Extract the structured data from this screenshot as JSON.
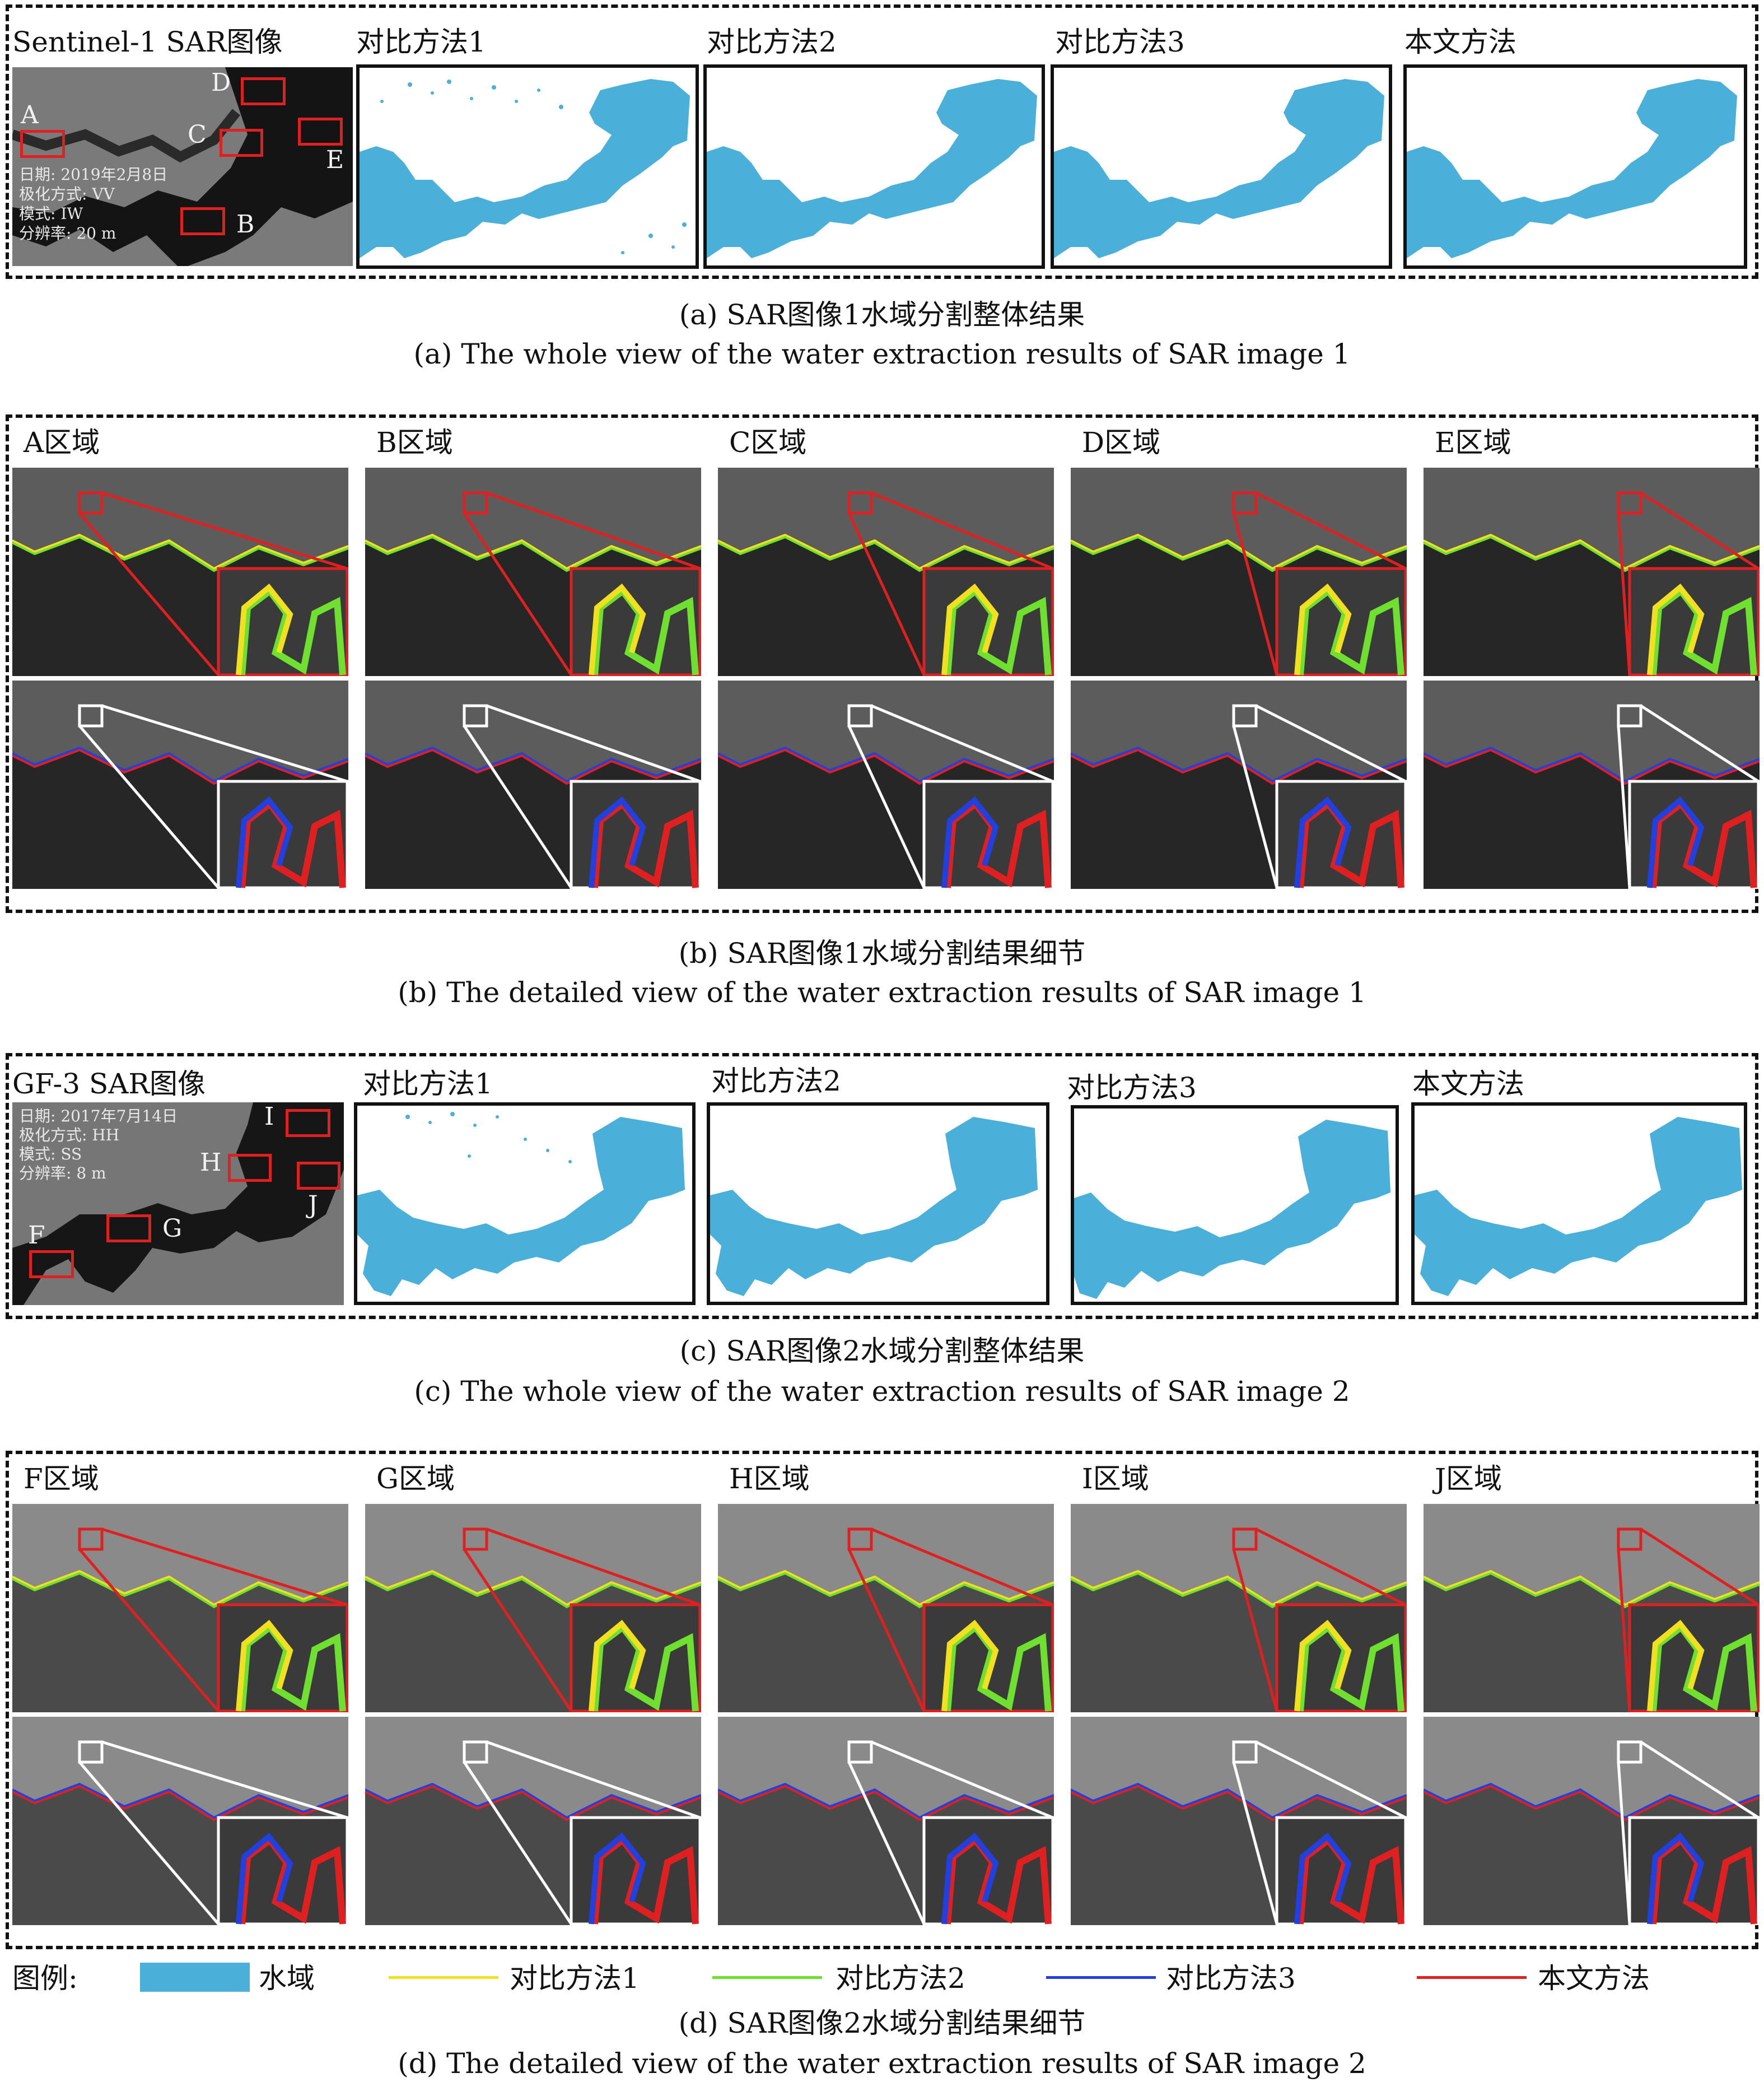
{
  "colors": {
    "water": "#4ab0d9",
    "method1": "#f0e020",
    "method2": "#6fe030",
    "method3": "#2040e0",
    "ours": "#e02020",
    "sar_dark": "#1c1c1c",
    "sar_light": "#8a8a8a"
  },
  "section_a": {
    "sar_title": "Sentinel-1  SAR图像",
    "meta": [
      "日期: 2019年2月8日",
      "极化方式: VV",
      "模式: IW",
      "分辨率: 20 m"
    ],
    "regions": [
      "A",
      "B",
      "C",
      "D",
      "E"
    ],
    "method_titles": [
      "对比方法1",
      "对比方法2",
      "对比方法3",
      "本文方法"
    ],
    "caption_cn": "(a) SAR图像1水域分割整体结果",
    "caption_en": "(a)  The whole view of the water extraction results of SAR image 1"
  },
  "section_b": {
    "region_titles": [
      "A区域",
      "B区域",
      "C区域",
      "D区域",
      "E区域"
    ],
    "caption_cn": "(b) SAR图像1水域分割结果细节",
    "caption_en": "(b)  The detailed view of the water extraction results of SAR image 1"
  },
  "section_c": {
    "sar_title": "GF-3 SAR图像",
    "meta": [
      "日期: 2017年7月14日",
      "极化方式: HH",
      "模式: SS",
      "分辨率: 8 m"
    ],
    "regions": [
      "F",
      "G",
      "H",
      "I",
      "J"
    ],
    "method_titles": [
      "对比方法1",
      "对比方法2",
      "对比方法3",
      "本文方法"
    ],
    "caption_cn": "(c) SAR图像2水域分割整体结果",
    "caption_en": "(c)  The whole view of the water extraction results of SAR image 2"
  },
  "section_d": {
    "region_titles": [
      "F区域",
      "G区域",
      "H区域",
      "I区域",
      "J区域"
    ],
    "caption_cn": "(d) SAR图像2水域分割结果细节",
    "caption_en": "(d)  The detailed view of the water extraction results of SAR image 2"
  },
  "legend": {
    "title": "图例:",
    "items": [
      "水域",
      "对比方法1",
      "对比方法2",
      "对比方法3",
      "本文方法"
    ]
  }
}
